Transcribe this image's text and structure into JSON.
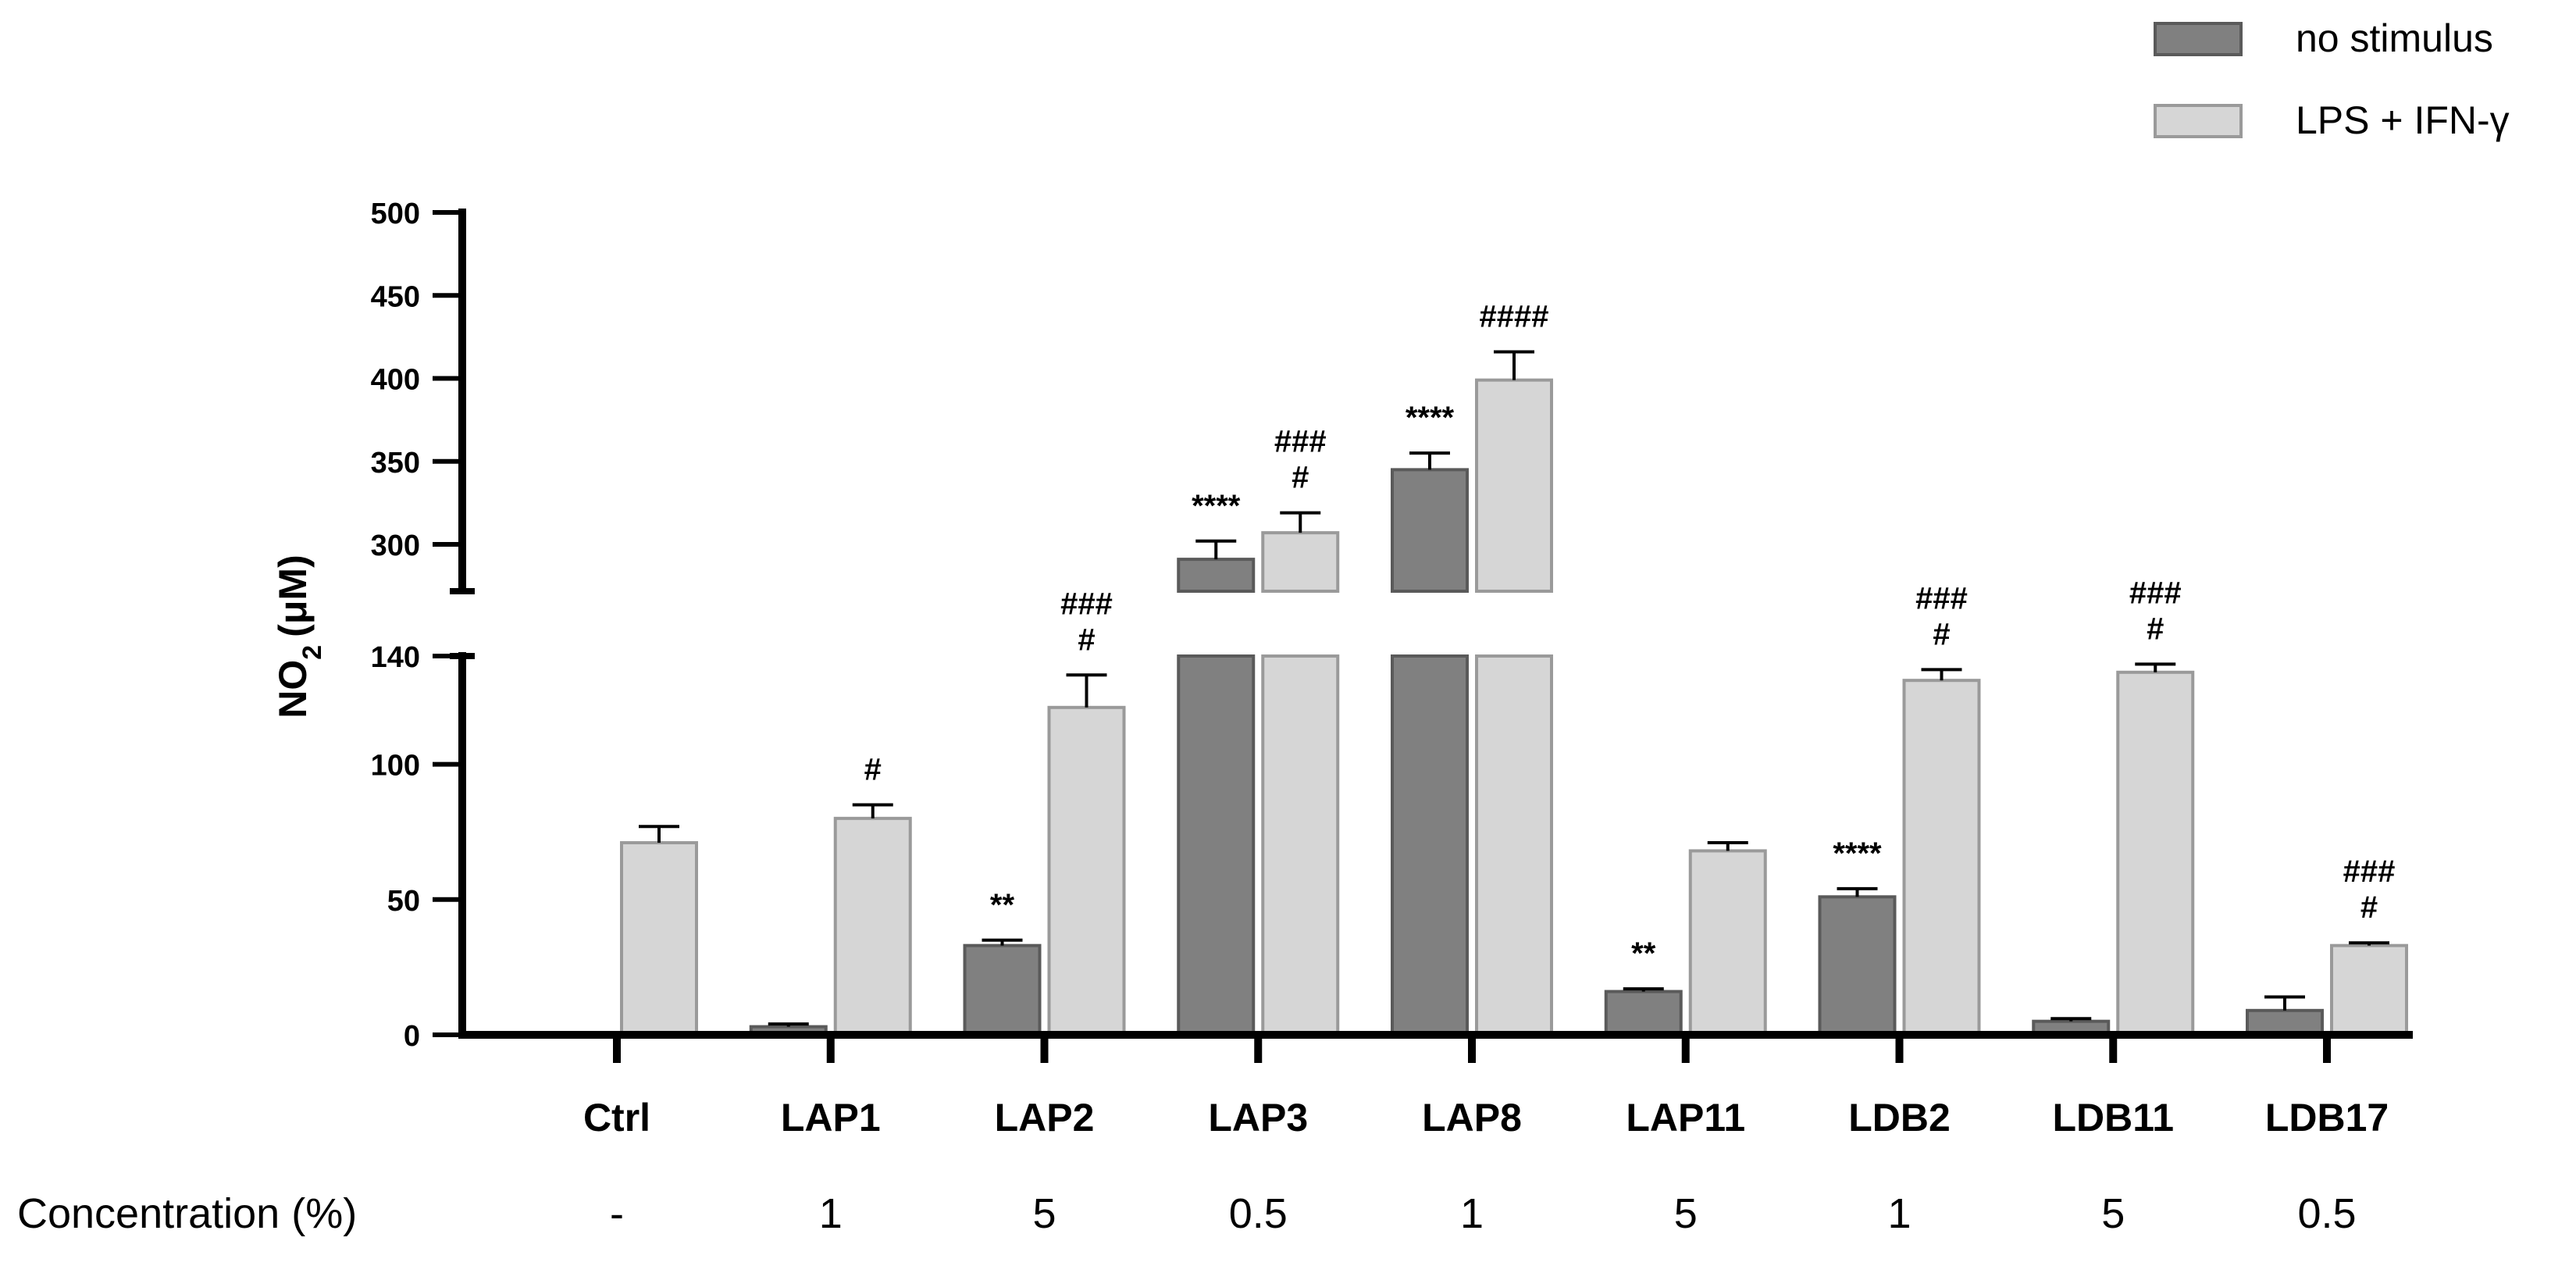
{
  "chart_data": {
    "type": "bar",
    "ylabel_main": "NO",
    "ylabel_sub": "2",
    "ylabel_unit": "(μM)",
    "categories": [
      "Ctrl",
      "LAP1",
      "LAP2",
      "LAP3",
      "LAP8",
      "LAP11",
      "LDB2",
      "LDB11",
      "LDB17"
    ],
    "concentration_label": "Concentration (%)",
    "concentrations": [
      "-",
      "1",
      "5",
      "0.5",
      "1",
      "5",
      "1",
      "5",
      "0.5"
    ],
    "series": [
      {
        "name": "no stimulus",
        "color": "#808080",
        "values": [
          0,
          3,
          33,
          291,
          345,
          16,
          51,
          5,
          9
        ],
        "errors": [
          0,
          1,
          2,
          11,
          10,
          1,
          3,
          1,
          5
        ],
        "annotations": [
          "",
          "",
          "**",
          "****",
          "****",
          "**",
          "****",
          "",
          ""
        ]
      },
      {
        "name": "LPS + IFN-γ",
        "color": "#d6d6d6",
        "values": [
          71,
          80,
          121,
          307,
          399,
          68,
          131,
          134,
          33
        ],
        "errors": [
          6,
          5,
          12,
          12,
          17,
          3,
          4,
          3,
          1
        ],
        "annotations": [
          "",
          "#",
          "###\n#",
          "###\n#",
          "####",
          "",
          "###\n#",
          "###\n#",
          "###\n#"
        ]
      }
    ],
    "y_axis_lower": {
      "range": [
        0,
        140
      ],
      "ticks": [
        0,
        50,
        100,
        140
      ]
    },
    "y_axis_upper": {
      "range": [
        280,
        500
      ],
      "ticks": [
        300,
        350,
        400,
        450,
        500
      ]
    },
    "axis_break": "between 140 and 280",
    "legend_position": "top-right"
  }
}
